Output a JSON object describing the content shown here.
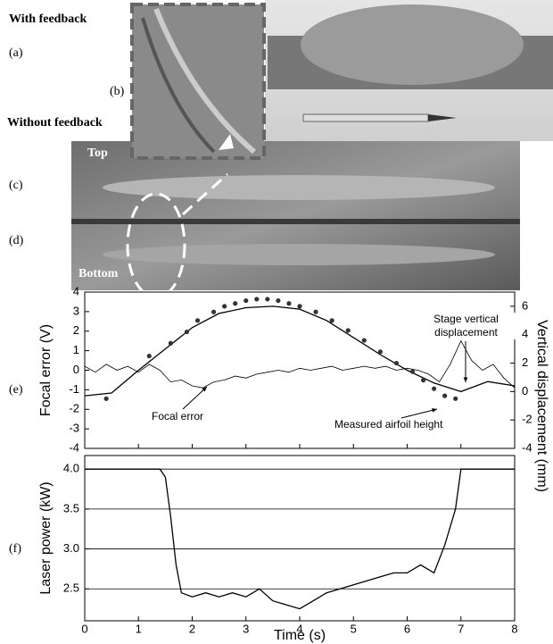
{
  "photo_labels": {
    "panels": [
      "(a)",
      "(b)",
      "(c)",
      "(d)"
    ],
    "with_feedback": "With feedback",
    "without_feedback": "Without feedback",
    "top": "Top",
    "bottom": "Bottom"
  },
  "chart_data": [
    {
      "type": "line",
      "panel_label": "(e)",
      "ylabel": "Focal error (V)",
      "y2label": "Vertical displacement (mm)",
      "xlim": [
        0,
        8
      ],
      "xticks": [
        0,
        1,
        2,
        3,
        4,
        5,
        6,
        7,
        8
      ],
      "xtick_labels": false,
      "ylim": [
        -4,
        4
      ],
      "yticks": [
        -4,
        -3,
        -2,
        -1,
        0,
        1,
        2,
        3,
        4
      ],
      "y2lim": [
        -4,
        7
      ],
      "y2ticks": [
        -4,
        -2,
        0,
        2,
        4,
        6
      ],
      "annotations": [
        "Focal error",
        "Stage vertical displacement",
        "Measured airfoil height"
      ],
      "series": [
        {
          "name": "Focal error",
          "color": "#000000",
          "axis": "y",
          "x": [
            0,
            0.2,
            0.4,
            0.6,
            0.8,
            1.0,
            1.2,
            1.4,
            1.6,
            1.8,
            2.0,
            2.2,
            2.4,
            2.6,
            2.8,
            3.0,
            3.2,
            3.4,
            3.6,
            3.8,
            4.0,
            4.2,
            4.4,
            4.6,
            4.8,
            5.0,
            5.2,
            5.4,
            5.6,
            5.8,
            6.0,
            6.2,
            6.4,
            6.6,
            6.8,
            7.0,
            7.2,
            7.4,
            7.6,
            7.8,
            8.0
          ],
          "values": [
            0.2,
            -0.1,
            0.3,
            0,
            0.2,
            -0.1,
            0.3,
            0,
            -0.6,
            -0.5,
            -0.8,
            -0.9,
            -0.6,
            -0.5,
            -0.3,
            -0.4,
            -0.2,
            -0.1,
            0,
            -0.1,
            0.1,
            0,
            0.1,
            0.2,
            0,
            0.1,
            0.2,
            0.1,
            0.2,
            0,
            0.1,
            0,
            -0.2,
            -0.6,
            0.3,
            1.5,
            0.5,
            0,
            0.3,
            -0.4,
            -0.9
          ]
        },
        {
          "name": "Stage vertical displacement",
          "color": "#000000",
          "axis": "y2",
          "x": [
            0,
            0.5,
            1,
            1.5,
            2,
            2.5,
            3,
            3.5,
            4,
            4.5,
            5,
            5.5,
            6,
            6.5,
            7,
            7.5,
            8
          ],
          "values": [
            -0.3,
            -0.1,
            1.5,
            3,
            4.5,
            5.5,
            5.9,
            6,
            5.8,
            5,
            3.8,
            2.6,
            1.5,
            0.6,
            0,
            0.7,
            0.4
          ]
        },
        {
          "name": "Measured airfoil height",
          "color": "#333333",
          "axis": "y2",
          "mode": "markers",
          "x": [
            0.4,
            1.2,
            1.6,
            1.9,
            2.1,
            2.4,
            2.6,
            2.8,
            3.0,
            3.2,
            3.4,
            3.6,
            3.8,
            4.0,
            4.3,
            4.6,
            4.9,
            5.2,
            5.5,
            5.8,
            6.1,
            6.3,
            6.5,
            6.7,
            6.9
          ],
          "values": [
            -0.5,
            2.5,
            3.4,
            4.2,
            5,
            5.6,
            6,
            6.2,
            6.4,
            6.5,
            6.5,
            6.4,
            6.2,
            6,
            5.6,
            5,
            4.3,
            3.6,
            2.8,
            2,
            1.4,
            0.8,
            0.2,
            -0.3,
            -0.5
          ]
        }
      ]
    },
    {
      "type": "line",
      "panel_label": "(f)",
      "ylabel": "Laser power (kW)",
      "xlabel": "Time (s)",
      "xlim": [
        0,
        8
      ],
      "xticks": [
        0,
        1,
        2,
        3,
        4,
        5,
        6,
        7,
        8
      ],
      "xtick_labels": true,
      "ylim": [
        2.1,
        4.17
      ],
      "yticks": [
        {
          "value": 2.5,
          "label": "2.5"
        },
        {
          "value": 3.0,
          "label": "3.0"
        },
        {
          "value": 3.5,
          "label": "3.5"
        },
        {
          "value": 4.0,
          "label": "4.0"
        }
      ],
      "grid": true,
      "series": [
        {
          "name": "Laser power",
          "color": "#000000",
          "axis": "y",
          "x": [
            0,
            0.5,
            1,
            1.4,
            1.5,
            1.6,
            1.7,
            1.8,
            2,
            2.25,
            2.5,
            2.75,
            3,
            3.25,
            3.5,
            3.75,
            4,
            4.25,
            4.5,
            4.75,
            5,
            5.25,
            5.5,
            5.75,
            6,
            6.25,
            6.5,
            6.7,
            6.9,
            7,
            7.5,
            8
          ],
          "values": [
            4,
            4,
            4,
            4,
            3.9,
            3.4,
            2.8,
            2.45,
            2.4,
            2.45,
            2.4,
            2.45,
            2.4,
            2.5,
            2.35,
            2.3,
            2.25,
            2.35,
            2.45,
            2.5,
            2.55,
            2.6,
            2.65,
            2.7,
            2.7,
            2.8,
            2.7,
            3.05,
            3.5,
            4,
            4,
            4
          ]
        }
      ]
    }
  ]
}
